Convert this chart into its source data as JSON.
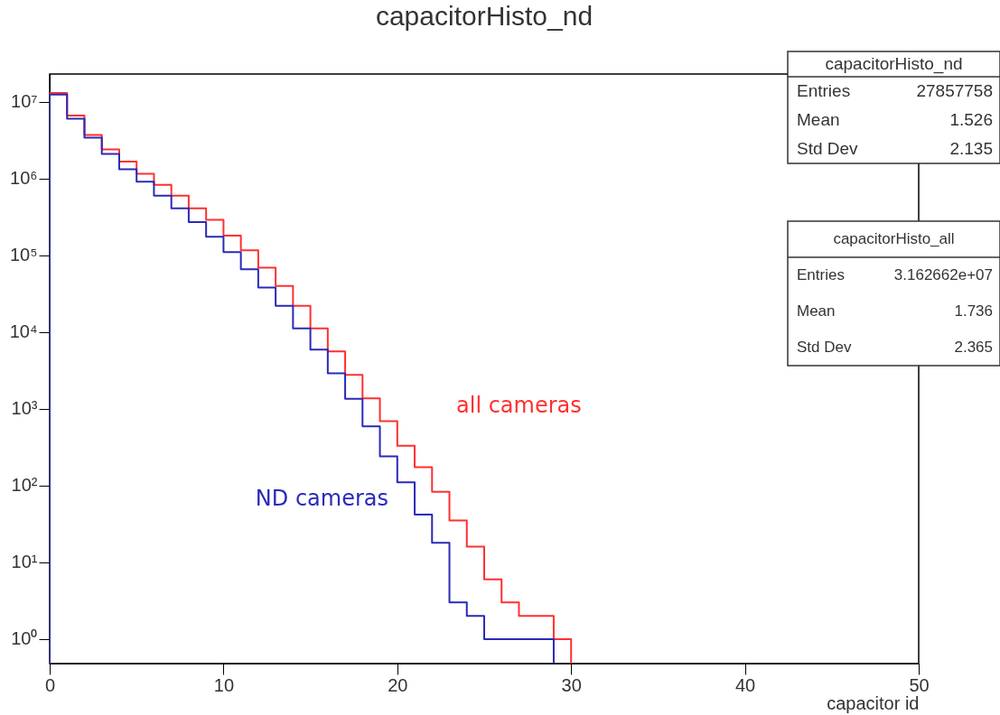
{
  "chart_data": {
    "type": "histogram",
    "title": "capacitorHisto_nd",
    "xlabel": "capacitor id",
    "bins": [
      0,
      1,
      2,
      3,
      4,
      5,
      6,
      7,
      8,
      9,
      10,
      11,
      12,
      13,
      14,
      15,
      16,
      17,
      18,
      19,
      20,
      21,
      22,
      23,
      24,
      25,
      26,
      27,
      28,
      29,
      30
    ],
    "series": [
      {
        "name": "all cameras",
        "color": "#ff3030",
        "values": [
          13000000,
          6600000,
          3700000,
          2400000,
          1660000,
          1150000,
          830000,
          600000,
          410000,
          290000,
          180000,
          116000,
          69000,
          40000,
          22000,
          11200,
          5600,
          2760,
          1370,
          690,
          330,
          173,
          83,
          35,
          16,
          6,
          3,
          2,
          2,
          1
        ]
      },
      {
        "name": "ND cameras",
        "color": "#2a2ab8",
        "bins": [
          0,
          1,
          2,
          3,
          4,
          5,
          6,
          7,
          8,
          9,
          10,
          11,
          12,
          13,
          14,
          15,
          16,
          17,
          18,
          19,
          20,
          21,
          22,
          23,
          24,
          25,
          26,
          27,
          28,
          29
        ],
        "values": [
          12400000,
          6000000,
          3400000,
          2100000,
          1320000,
          910000,
          600000,
          410000,
          270000,
          174000,
          110000,
          66000,
          38000,
          22000,
          11200,
          5900,
          2900,
          1350,
          590,
          240,
          110,
          42,
          18,
          3,
          2,
          1,
          1,
          1,
          1
        ]
      }
    ],
    "log": "y",
    "grid": false,
    "legend": false,
    "xlim": [
      0,
      50
    ],
    "xticks": [
      0,
      10,
      20,
      30,
      40,
      50
    ],
    "ylim": [
      0.48,
      23000000
    ],
    "yticks": [
      {
        "value": 1,
        "label": "10⁰"
      },
      {
        "value": 10,
        "label": "10¹"
      },
      {
        "value": 100,
        "label": "10²"
      },
      {
        "value": 1000,
        "label": "10³"
      },
      {
        "value": 10000,
        "label": "10⁴"
      },
      {
        "value": 100000,
        "label": "10⁵"
      },
      {
        "value": 1000000,
        "label": "10⁶"
      },
      {
        "value": 10000000,
        "label": "10⁷"
      }
    ],
    "annotations": [
      "capacitorHisto_nd",
      "Entries",
      "27857758",
      "Mean",
      "1.526",
      "Std Dev",
      "2.135",
      "capacitorHisto_all",
      "Entries",
      "3.162662e+07",
      "Mean",
      "1.736",
      "Std Dev",
      "2.365"
    ]
  }
}
